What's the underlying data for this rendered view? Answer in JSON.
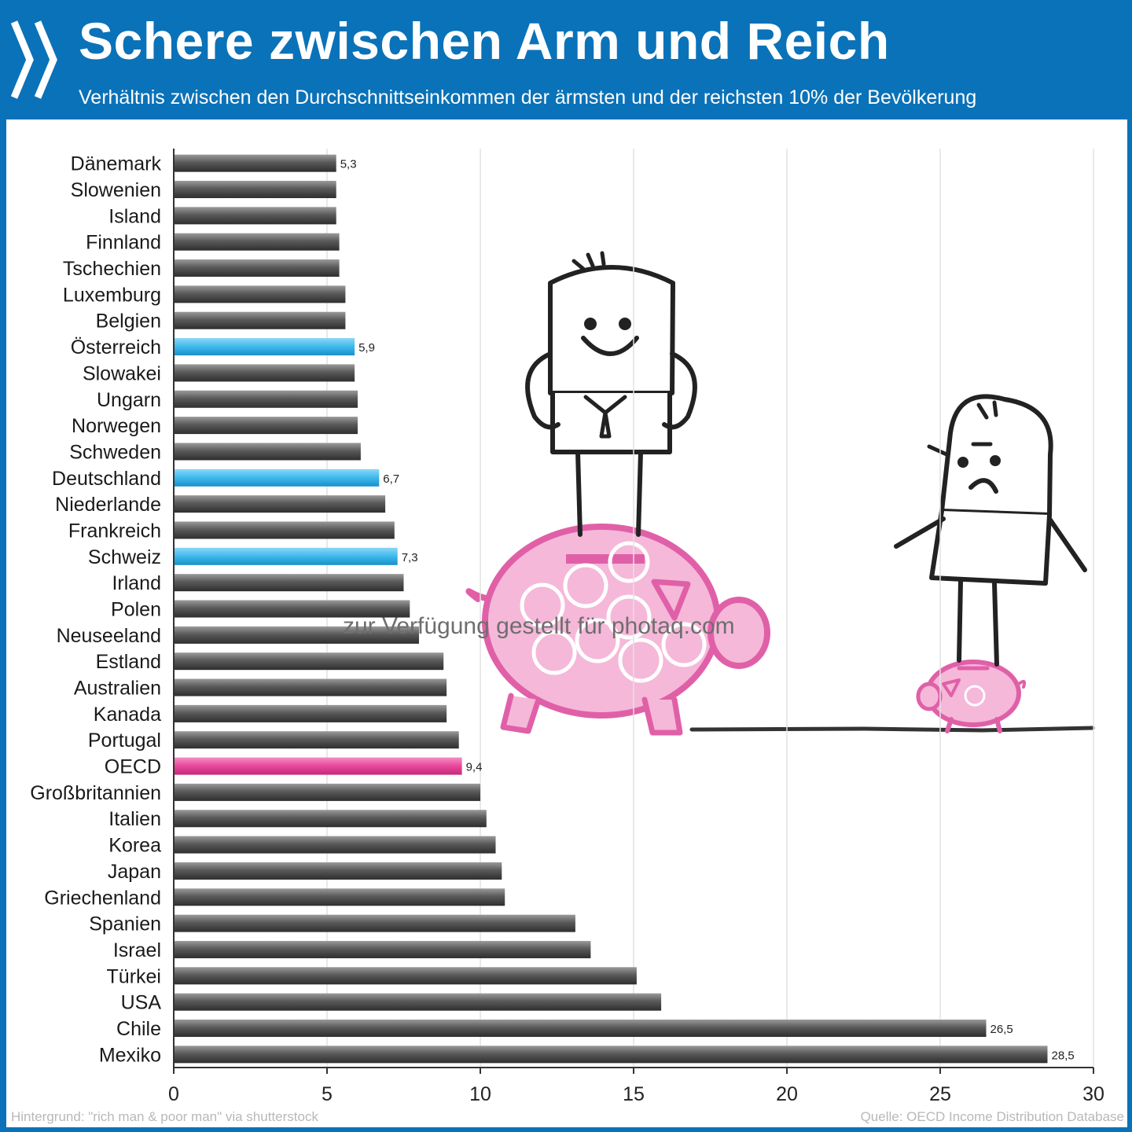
{
  "header": {
    "title": "Schere zwischen Arm und Reich",
    "subtitle": "Verhältnis zwischen den Durchschnittseinkommen der ärmsten und der reichsten 10% der Bevölkerung"
  },
  "footer": {
    "credit": "Hintergrund: \"rich man & poor man\" via shutterstock",
    "source": "Quelle: OECD Income Distribution Database"
  },
  "watermark": "zur Verfügung gestellt für photaq.com",
  "colors": {
    "brand_blue": "#0a72b8",
    "bar_default": "#555555",
    "bar_highlight_country": "#3db8ec",
    "bar_highlight_oecd": "#e8479a",
    "illustration_pink": "#e060a8"
  },
  "chart_data": {
    "type": "bar",
    "orientation": "horizontal",
    "categories": [
      "Dänemark",
      "Slowenien",
      "Island",
      "Finnland",
      "Tschechien",
      "Luxemburg",
      "Belgien",
      "Österreich",
      "Slowakei",
      "Ungarn",
      "Norwegen",
      "Schweden",
      "Deutschland",
      "Niederlande",
      "Frankreich",
      "Schweiz",
      "Irland",
      "Polen",
      "Neuseeland",
      "Estland",
      "Australien",
      "Kanada",
      "Portugal",
      "OECD",
      "Großbritannien",
      "Italien",
      "Korea",
      "Japan",
      "Griechenland",
      "Spanien",
      "Israel",
      "Türkei",
      "USA",
      "Chile",
      "Mexiko"
    ],
    "values": [
      5.3,
      5.3,
      5.3,
      5.4,
      5.4,
      5.6,
      5.6,
      5.9,
      5.9,
      6.0,
      6.0,
      6.1,
      6.7,
      6.9,
      7.2,
      7.3,
      7.5,
      7.7,
      8.0,
      8.8,
      8.9,
      8.9,
      9.3,
      9.4,
      10.0,
      10.2,
      10.5,
      10.7,
      10.8,
      13.1,
      13.6,
      15.1,
      15.9,
      26.5,
      28.5
    ],
    "highlight": [
      "none",
      "none",
      "none",
      "none",
      "none",
      "none",
      "none",
      "country",
      "none",
      "none",
      "none",
      "none",
      "country",
      "none",
      "none",
      "country",
      "none",
      "none",
      "none",
      "none",
      "none",
      "none",
      "none",
      "oecd",
      "none",
      "none",
      "none",
      "none",
      "none",
      "none",
      "none",
      "none",
      "none",
      "none",
      "none"
    ],
    "data_labels": [
      "5,3",
      "",
      "",
      "",
      "",
      "",
      "",
      "5,9",
      "",
      "",
      "",
      "",
      "6,7",
      "",
      "",
      "7,3",
      "",
      "",
      "",
      "",
      "",
      "",
      "",
      "9,4",
      "",
      "",
      "",
      "",
      "",
      "",
      "",
      "",
      "",
      "26,5",
      "28,5"
    ],
    "xticks": [
      "0",
      "5",
      "10",
      "15",
      "20",
      "25",
      "30"
    ],
    "xlim": [
      0,
      30
    ],
    "grid": "vertical",
    "legend": "none"
  }
}
